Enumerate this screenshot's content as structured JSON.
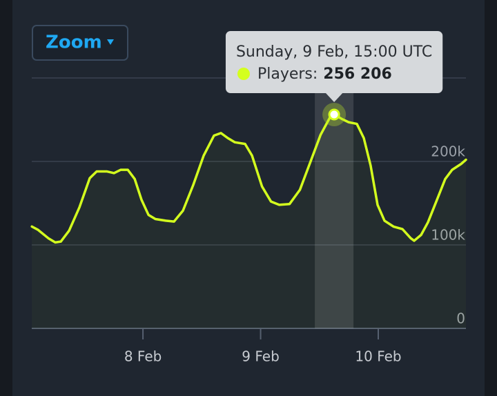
{
  "chart_data": {
    "type": "line",
    "button": "Zoom",
    "x": [
      7.056,
      7.109,
      7.196,
      7.255,
      7.302,
      7.372,
      7.46,
      7.548,
      7.607,
      7.695,
      7.754,
      7.812,
      7.871,
      7.93,
      7.988,
      8.047,
      8.106,
      8.194,
      8.264,
      8.34,
      8.428,
      8.516,
      8.604,
      8.663,
      8.721,
      8.78,
      8.868,
      8.927,
      9.012,
      9.088,
      9.158,
      9.246,
      9.334,
      9.422,
      9.51,
      9.598,
      9.625,
      9.689,
      9.748,
      9.818,
      9.877,
      9.935,
      9.994,
      10.053,
      10.129,
      10.205,
      10.276,
      10.305,
      10.364,
      10.422,
      10.493,
      10.569,
      10.628,
      10.704,
      10.745
    ],
    "series": [
      {
        "name": "Players",
        "color": "#d4ff1e",
        "values": [
          122000,
          118000,
          108000,
          103000,
          104000,
          117000,
          145000,
          180000,
          188000,
          188000,
          186000,
          190000,
          190000,
          179000,
          154000,
          136000,
          131000,
          129000,
          128000,
          141000,
          172000,
          207000,
          231000,
          234000,
          228000,
          223000,
          221000,
          207000,
          170000,
          152000,
          148000,
          149000,
          166000,
          199000,
          232000,
          255000,
          256206,
          251000,
          247000,
          245000,
          228000,
          195000,
          148000,
          129000,
          122000,
          119000,
          108000,
          105000,
          112000,
          127000,
          152000,
          179000,
          190000,
          197000,
          202000
        ]
      }
    ],
    "xlim": [
      7.055,
      10.745
    ],
    "xticks": [
      {
        "value": 8,
        "label": "8 Feb"
      },
      {
        "value": 9,
        "label": "9 Feb"
      },
      {
        "value": 10,
        "label": "10 Feb"
      }
    ],
    "ylim": [
      0,
      300000
    ],
    "yticks": [
      {
        "value": 0,
        "label": "0"
      },
      {
        "value": 100000,
        "label": "100k"
      },
      {
        "value": 200000,
        "label": "200k"
      }
    ],
    "grid": true,
    "tooltip": {
      "title": "Sunday, 9 Feb, 15:00 UTC",
      "label": "Players:",
      "point": 36,
      "value_label": "256 206"
    }
  }
}
